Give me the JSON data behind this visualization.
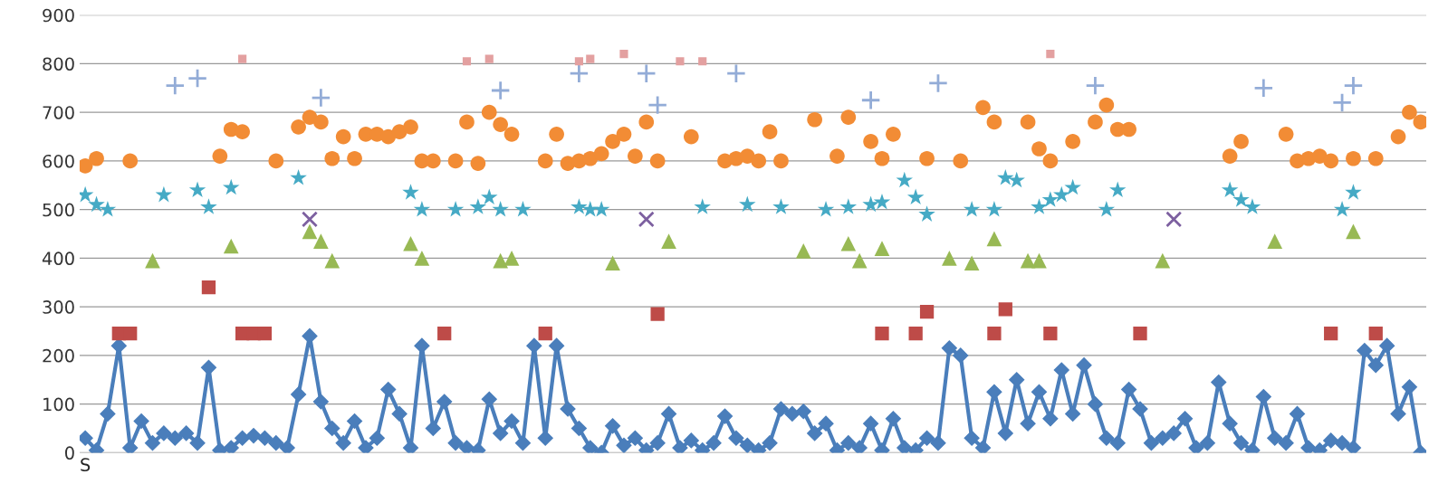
{
  "chart_data": {
    "type": "scatter",
    "xlabel": "S",
    "tick_labels": "y",
    "grid": "y",
    "categories": [
      null,
      null,
      null,
      null,
      null,
      null,
      null,
      null,
      null,
      null,
      null,
      null,
      null,
      null,
      null,
      null,
      null,
      null,
      null,
      null,
      null,
      null,
      null,
      null,
      null,
      null,
      null,
      null,
      null,
      null,
      null,
      null,
      null,
      null,
      null,
      null,
      null,
      null,
      null,
      null,
      null,
      null,
      null,
      null,
      null,
      null,
      null,
      null,
      null,
      null,
      null,
      null,
      null,
      null,
      null,
      null,
      null,
      null,
      null,
      null,
      null,
      null,
      null,
      null,
      null,
      null,
      null,
      null,
      null,
      null,
      null,
      null,
      null,
      null,
      null,
      null,
      null,
      null,
      null,
      null,
      null,
      null,
      null,
      null,
      null,
      null,
      null,
      null,
      null,
      null,
      null,
      null,
      null,
      null,
      null,
      null,
      null,
      null,
      null,
      null,
      null,
      null,
      null,
      null,
      null,
      null,
      null,
      null,
      null,
      null,
      null,
      null,
      null,
      null,
      null,
      null,
      null,
      null,
      null,
      null
    ],
    "ylim": [
      0,
      900
    ],
    "yticks": [
      0,
      100,
      200,
      300,
      400,
      500,
      600,
      700,
      800,
      900
    ],
    "series": [
      {
        "type": "line",
        "marker": "diamond",
        "color": "#4a7ebb",
        "values": [
          30,
          5,
          80,
          220,
          10,
          65,
          20,
          40,
          30,
          40,
          20,
          175,
          5,
          10,
          30,
          35,
          30,
          20,
          10,
          120,
          240,
          105,
          50,
          20,
          65,
          10,
          30,
          130,
          80,
          10,
          220,
          50,
          105,
          20,
          10,
          5,
          110,
          40,
          65,
          20,
          220,
          30,
          220,
          90,
          50,
          10,
          0,
          55,
          15,
          30,
          5,
          20,
          80,
          10,
          25,
          5,
          20,
          75,
          30,
          15,
          5,
          20,
          90,
          80,
          85,
          40,
          60,
          5,
          20,
          10,
          60,
          5,
          70,
          10,
          5,
          30,
          20,
          215,
          200,
          30,
          10,
          125,
          40,
          150,
          60,
          125,
          70,
          170,
          80,
          180,
          100,
          30,
          20,
          130,
          90,
          20,
          30,
          40,
          70,
          10,
          20,
          145,
          60,
          20,
          5,
          115,
          30,
          20,
          80,
          10,
          5,
          25,
          20,
          10,
          210,
          180,
          220,
          80,
          135,
          0
        ]
      },
      {
        "marker": "square",
        "color": "#be4b48",
        "values": [
          null,
          null,
          null,
          245,
          245,
          null,
          null,
          null,
          null,
          null,
          null,
          340,
          null,
          null,
          245,
          245,
          245,
          null,
          null,
          null,
          null,
          null,
          null,
          null,
          null,
          null,
          null,
          null,
          null,
          null,
          null,
          null,
          245,
          null,
          null,
          null,
          null,
          null,
          null,
          null,
          null,
          245,
          null,
          null,
          null,
          null,
          null,
          null,
          null,
          null,
          null,
          285,
          null,
          null,
          null,
          null,
          null,
          null,
          null,
          null,
          null,
          null,
          null,
          null,
          null,
          null,
          null,
          null,
          null,
          null,
          null,
          245,
          null,
          null,
          245,
          290,
          null,
          null,
          null,
          null,
          null,
          245,
          295,
          null,
          null,
          null,
          245,
          null,
          null,
          null,
          null,
          null,
          null,
          null,
          245,
          null,
          null,
          null,
          null,
          null,
          null,
          null,
          null,
          null,
          null,
          null,
          null,
          null,
          null,
          null,
          null,
          245,
          null,
          null,
          null,
          245,
          null,
          null,
          null,
          null
        ]
      },
      {
        "marker": "triangle",
        "color": "#98b954",
        "values": [
          null,
          null,
          null,
          null,
          null,
          null,
          395,
          null,
          null,
          null,
          null,
          null,
          null,
          425,
          null,
          null,
          null,
          null,
          null,
          null,
          455,
          435,
          395,
          null,
          null,
          null,
          null,
          null,
          null,
          430,
          400,
          null,
          null,
          null,
          null,
          null,
          null,
          395,
          400,
          null,
          null,
          null,
          null,
          null,
          null,
          null,
          null,
          390,
          null,
          null,
          null,
          null,
          435,
          null,
          null,
          null,
          null,
          null,
          null,
          null,
          null,
          null,
          null,
          null,
          415,
          null,
          null,
          null,
          430,
          395,
          null,
          420,
          null,
          null,
          null,
          null,
          null,
          400,
          null,
          390,
          null,
          440,
          null,
          null,
          395,
          395,
          null,
          null,
          null,
          null,
          null,
          null,
          null,
          null,
          null,
          null,
          395,
          null,
          null,
          null,
          null,
          null,
          null,
          null,
          null,
          null,
          435,
          null,
          null,
          null,
          null,
          null,
          null,
          455,
          null,
          null,
          null,
          null,
          null,
          null
        ]
      },
      {
        "marker": "cross",
        "color": "#7d60a0",
        "values": [
          null,
          null,
          null,
          null,
          null,
          null,
          null,
          null,
          null,
          null,
          null,
          null,
          null,
          null,
          null,
          null,
          null,
          null,
          null,
          null,
          480,
          null,
          null,
          null,
          null,
          null,
          null,
          null,
          null,
          null,
          null,
          null,
          null,
          null,
          null,
          null,
          null,
          null,
          null,
          null,
          null,
          null,
          null,
          null,
          null,
          null,
          null,
          null,
          null,
          null,
          480,
          null,
          null,
          null,
          null,
          null,
          null,
          null,
          null,
          null,
          null,
          null,
          null,
          null,
          null,
          null,
          null,
          null,
          null,
          null,
          null,
          null,
          null,
          null,
          null,
          null,
          null,
          null,
          null,
          null,
          null,
          null,
          null,
          null,
          null,
          null,
          null,
          null,
          null,
          null,
          null,
          null,
          null,
          null,
          null,
          null,
          null,
          480,
          null,
          null,
          null,
          null,
          null,
          null,
          null,
          null,
          null,
          null,
          null,
          null,
          null,
          null,
          null,
          null,
          null,
          null,
          null,
          null,
          null,
          null
        ]
      },
      {
        "marker": "star",
        "color": "#46aac5",
        "values": [
          530,
          510,
          500,
          null,
          null,
          null,
          null,
          530,
          null,
          null,
          540,
          505,
          null,
          545,
          null,
          null,
          null,
          null,
          null,
          565,
          null,
          null,
          null,
          null,
          null,
          null,
          null,
          null,
          null,
          535,
          500,
          null,
          null,
          500,
          null,
          505,
          525,
          500,
          null,
          500,
          null,
          null,
          null,
          null,
          505,
          500,
          500,
          null,
          null,
          null,
          null,
          null,
          null,
          null,
          null,
          505,
          null,
          null,
          null,
          510,
          null,
          null,
          505,
          null,
          null,
          null,
          500,
          null,
          505,
          null,
          510,
          515,
          null,
          560,
          525,
          490,
          null,
          null,
          null,
          500,
          null,
          500,
          565,
          560,
          null,
          505,
          520,
          530,
          545,
          null,
          null,
          500,
          540,
          null,
          null,
          null,
          null,
          null,
          null,
          null,
          null,
          null,
          540,
          520,
          505,
          null,
          null,
          null,
          null,
          null,
          null,
          null,
          500,
          535,
          null,
          null,
          null,
          null,
          null,
          null
        ]
      },
      {
        "marker": "circle",
        "color": "#f28c35",
        "values": [
          590,
          605,
          null,
          null,
          600,
          null,
          null,
          null,
          null,
          null,
          null,
          null,
          610,
          665,
          660,
          null,
          null,
          600,
          null,
          670,
          690,
          680,
          605,
          650,
          605,
          655,
          655,
          650,
          660,
          670,
          600,
          600,
          null,
          600,
          680,
          595,
          700,
          675,
          655,
          null,
          null,
          600,
          655,
          595,
          600,
          605,
          615,
          640,
          655,
          610,
          680,
          600,
          null,
          null,
          650,
          null,
          null,
          600,
          605,
          610,
          600,
          660,
          600,
          null,
          null,
          685,
          null,
          610,
          690,
          null,
          640,
          605,
          655,
          null,
          null,
          605,
          null,
          null,
          600,
          null,
          710,
          680,
          null,
          null,
          680,
          625,
          600,
          null,
          640,
          null,
          680,
          715,
          665,
          665,
          null,
          null,
          null,
          null,
          null,
          null,
          null,
          null,
          610,
          640,
          null,
          null,
          null,
          655,
          600,
          605,
          610,
          600,
          null,
          605,
          null,
          605,
          null,
          650,
          700,
          680
        ]
      },
      {
        "marker": "plus",
        "color": "#93acd7",
        "values": [
          null,
          null,
          null,
          null,
          null,
          null,
          null,
          null,
          755,
          null,
          770,
          null,
          null,
          null,
          null,
          null,
          null,
          null,
          null,
          null,
          null,
          730,
          null,
          null,
          null,
          null,
          null,
          null,
          null,
          null,
          null,
          null,
          null,
          null,
          null,
          null,
          null,
          745,
          null,
          null,
          null,
          null,
          null,
          null,
          780,
          null,
          null,
          null,
          null,
          null,
          780,
          715,
          null,
          null,
          null,
          null,
          null,
          null,
          780,
          null,
          null,
          null,
          null,
          null,
          null,
          null,
          null,
          null,
          null,
          null,
          725,
          null,
          null,
          null,
          null,
          null,
          760,
          null,
          null,
          null,
          null,
          null,
          null,
          null,
          null,
          null,
          null,
          null,
          null,
          null,
          755,
          null,
          null,
          null,
          null,
          null,
          null,
          null,
          null,
          null,
          null,
          null,
          null,
          null,
          null,
          750,
          null,
          null,
          null,
          null,
          null,
          null,
          720,
          755,
          null,
          null,
          null,
          null,
          null,
          null
        ]
      },
      {
        "marker": "square",
        "color": "#e3a0a0",
        "values": [
          null,
          null,
          null,
          null,
          null,
          null,
          null,
          null,
          null,
          null,
          null,
          null,
          null,
          null,
          810,
          null,
          null,
          null,
          null,
          null,
          null,
          null,
          null,
          null,
          null,
          null,
          null,
          null,
          null,
          null,
          null,
          null,
          null,
          null,
          805,
          null,
          810,
          null,
          null,
          null,
          null,
          null,
          null,
          null,
          805,
          810,
          null,
          null,
          820,
          null,
          null,
          null,
          null,
          805,
          null,
          805,
          null,
          null,
          null,
          null,
          null,
          null,
          null,
          null,
          null,
          null,
          null,
          null,
          null,
          null,
          null,
          null,
          null,
          null,
          null,
          null,
          null,
          null,
          null,
          null,
          null,
          null,
          null,
          null,
          null,
          null,
          820,
          null,
          null,
          null,
          null,
          null,
          null,
          null,
          null,
          null,
          null,
          null,
          null,
          null,
          null,
          null,
          null,
          null,
          null,
          null,
          null,
          null,
          null,
          null,
          null,
          null,
          null,
          null,
          null,
          null,
          null,
          null,
          null,
          null
        ]
      }
    ]
  }
}
